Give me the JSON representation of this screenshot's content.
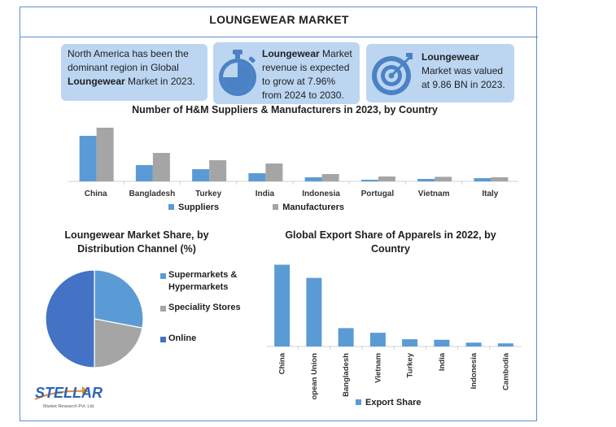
{
  "page": {
    "title": "LOUNGEWEAR MARKET"
  },
  "info": {
    "box1": {
      "pre": "North America has been the dominant region in Global ",
      "bold": "Loungewear",
      "post": " Market in 2023.",
      "icon": "stopwatch-icon"
    },
    "box2": {
      "bold": "Loungewear",
      "post": " Market revenue is expected to grow at 7.96% from 2024 to 2030.",
      "icon": "stopwatch-icon"
    },
    "box3": {
      "bold": "Loungewear",
      "post": " Market was valued at 9.86 BN in 2023.",
      "icon": "target-icon"
    }
  },
  "colors": {
    "primary": "#5b9bd5",
    "secondary": "#a5a5a5",
    "online": "#4472c4",
    "box": "#bcd6f2",
    "border": "#5b8fd1"
  },
  "chart_data": [
    {
      "type": "bar",
      "title": "Number of H&M Suppliers & Manufacturers in 2023, by Country",
      "categories": [
        "China",
        "Bangladesh",
        "Turkey",
        "India",
        "Indonesia",
        "Portugal",
        "Vietnam",
        "Italy"
      ],
      "series": [
        {
          "name": "Suppliers",
          "values": [
            280,
            100,
            75,
            50,
            25,
            10,
            15,
            20
          ]
        },
        {
          "name": "Manufacturers",
          "values": [
            330,
            175,
            130,
            110,
            45,
            30,
            28,
            25
          ]
        }
      ],
      "ylim": [
        0,
        350
      ],
      "legend": "bottom",
      "grid": false
    },
    {
      "type": "pie",
      "title": "Loungewear Market Share, by Distribution Channel (%)",
      "labels": [
        "Supermarkets & Hypermarkets",
        "Speciality Stores",
        "Online"
      ],
      "values": [
        28,
        22,
        50
      ],
      "legend": "right"
    },
    {
      "type": "bar",
      "title": "Global Export Share of Apparels in 2022, by Country",
      "categories": [
        "China",
        "European Union",
        "Bangladesh",
        "Vietnam",
        "Turkey",
        "India",
        "Indonesia",
        "Cambodia"
      ],
      "series": [
        {
          "name": "Export Share",
          "values": [
            31.6,
            26.5,
            7.1,
            5.3,
            2.8,
            2.6,
            1.5,
            1.2
          ]
        }
      ],
      "ylim": [
        0,
        33
      ],
      "legend": "bottom",
      "grid": false
    }
  ],
  "logo": {
    "name": "STELLAR",
    "tagline": "Market Research Pvt. Ltd."
  }
}
